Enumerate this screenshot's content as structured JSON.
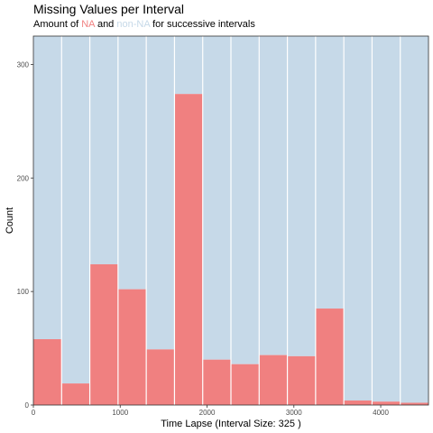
{
  "title": "Missing Values per Interval",
  "subtitle": {
    "prefix": "Amount of ",
    "na": "NA",
    "middle": " and ",
    "nonna": "non-NA",
    "suffix": " for successive intervals"
  },
  "colors": {
    "na": "#f08080",
    "non_na": "#c6d9e8",
    "grid": "#ffffff"
  },
  "chart_data": {
    "type": "bar",
    "title": "Missing Values per Interval",
    "subtitle": "Amount of NA and non-NA for successive intervals",
    "xlabel": "Time Lapse (Interval Size: 325 )",
    "ylabel": "Count",
    "interval_size": 325,
    "xlim": [
      0,
      4550
    ],
    "ylim": [
      0,
      325
    ],
    "x_ticks": [
      0,
      1000,
      2000,
      3000,
      4000
    ],
    "x_tick_labels": [
      "0",
      "1000",
      "2000",
      "3000",
      "4000"
    ],
    "y_ticks": [
      0,
      100,
      200,
      300
    ],
    "y_tick_labels": [
      "0",
      "100",
      "200",
      "300"
    ],
    "grid": false,
    "interval_starts": [
      0,
      325,
      650,
      975,
      1300,
      1625,
      1950,
      2275,
      2600,
      2925,
      3250,
      3575,
      3900,
      4225
    ],
    "series": [
      {
        "name": "NA",
        "values": [
          58,
          19,
          124,
          102,
          49,
          274,
          40,
          36,
          44,
          43,
          85,
          4,
          3,
          2
        ]
      },
      {
        "name": "non-NA",
        "values": [
          267,
          306,
          201,
          223,
          276,
          51,
          285,
          289,
          281,
          282,
          240,
          321,
          322,
          323
        ]
      }
    ]
  }
}
